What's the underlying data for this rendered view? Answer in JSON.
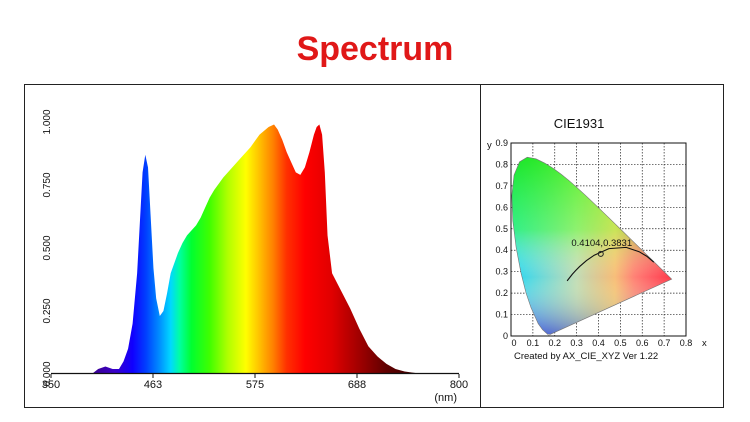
{
  "page_title": "Spectrum",
  "chart_data": [
    {
      "type": "area",
      "xlabel": "",
      "unit_label": "(nm)",
      "ylabel": "",
      "xlim": [
        350,
        800
      ],
      "ylim": [
        0,
        1
      ],
      "x_ticks": [
        "350",
        "463",
        "575",
        "688",
        "800"
      ],
      "y_ticks": [
        "0.000",
        "0.250",
        "0.500",
        "0.750",
        "1.000"
      ],
      "fill": "wavelength-gradient",
      "x": [
        350,
        395,
        402,
        410,
        418,
        425,
        430,
        435,
        440,
        445,
        448,
        451,
        454,
        457,
        460,
        463,
        466,
        470,
        474,
        478,
        482,
        486,
        490,
        495,
        500,
        505,
        510,
        515,
        520,
        525,
        530,
        540,
        550,
        560,
        570,
        580,
        590,
        596,
        600,
        605,
        610,
        615,
        620,
        625,
        630,
        635,
        640,
        643,
        646,
        649,
        652,
        655,
        660,
        670,
        680,
        690,
        700,
        710,
        720,
        730,
        740,
        760,
        800
      ],
      "y": [
        0,
        0,
        0.02,
        0.03,
        0.02,
        0.02,
        0.05,
        0.1,
        0.2,
        0.4,
        0.6,
        0.8,
        0.87,
        0.82,
        0.62,
        0.42,
        0.3,
        0.23,
        0.25,
        0.32,
        0.4,
        0.44,
        0.48,
        0.52,
        0.55,
        0.57,
        0.59,
        0.62,
        0.66,
        0.7,
        0.73,
        0.78,
        0.82,
        0.86,
        0.9,
        0.95,
        0.98,
        0.99,
        0.97,
        0.93,
        0.88,
        0.84,
        0.8,
        0.79,
        0.82,
        0.88,
        0.95,
        0.98,
        0.99,
        0.95,
        0.8,
        0.55,
        0.4,
        0.33,
        0.26,
        0.18,
        0.11,
        0.07,
        0.04,
        0.02,
        0.01,
        0,
        0
      ]
    },
    {
      "type": "scatter",
      "title": "CIE1931",
      "xlabel": "x",
      "ylabel": "y",
      "xlim": [
        0,
        0.8
      ],
      "ylim": [
        0,
        0.9
      ],
      "x_ticks": [
        "0",
        "0.1",
        "0.2",
        "0.3",
        "0.4",
        "0.5",
        "0.6",
        "0.7",
        "0.8"
      ],
      "y_ticks": [
        "0",
        "0.1",
        "0.2",
        "0.3",
        "0.4",
        "0.5",
        "0.6",
        "0.7",
        "0.8",
        "0.9"
      ],
      "point": {
        "x": 0.4104,
        "y": 0.3831,
        "label": "0.4104,0.3831"
      },
      "footer": "Created by AX_CIE_XYZ Ver 1.22",
      "locus_x": [
        0.1741,
        0.1738,
        0.173,
        0.1714,
        0.1689,
        0.1644,
        0.1566,
        0.144,
        0.1241,
        0.0913,
        0.0687,
        0.0454,
        0.0235,
        0.0082,
        0.0039,
        0.0139,
        0.0389,
        0.0743,
        0.1142,
        0.1547,
        0.1929,
        0.2296,
        0.2658,
        0.3016,
        0.3373,
        0.3731,
        0.4087,
        0.4441,
        0.4788,
        0.5125,
        0.5448,
        0.5752,
        0.6029,
        0.627,
        0.6482,
        0.6658,
        0.6801,
        0.6915,
        0.7006,
        0.7079,
        0.714,
        0.7347
      ],
      "locus_y": [
        0.005,
        0.0049,
        0.0048,
        0.0051,
        0.0069,
        0.0109,
        0.0177,
        0.0297,
        0.0578,
        0.1327,
        0.2007,
        0.295,
        0.4127,
        0.5384,
        0.6548,
        0.7502,
        0.812,
        0.8338,
        0.8262,
        0.8059,
        0.7816,
        0.7543,
        0.7243,
        0.6923,
        0.6589,
        0.6245,
        0.5896,
        0.5547,
        0.5202,
        0.4866,
        0.4544,
        0.4242,
        0.3965,
        0.3725,
        0.3514,
        0.334,
        0.3197,
        0.3083,
        0.2993,
        0.292,
        0.2859,
        0.2653
      ],
      "planckian_x": [
        0.6528,
        0.6206,
        0.5857,
        0.5267,
        0.4476,
        0.3805,
        0.345,
        0.3135,
        0.2952,
        0.2807,
        0.2565
      ],
      "planckian_y": [
        0.3444,
        0.3719,
        0.3931,
        0.4133,
        0.4075,
        0.3768,
        0.3516,
        0.3237,
        0.3048,
        0.2884,
        0.2571
      ]
    }
  ]
}
